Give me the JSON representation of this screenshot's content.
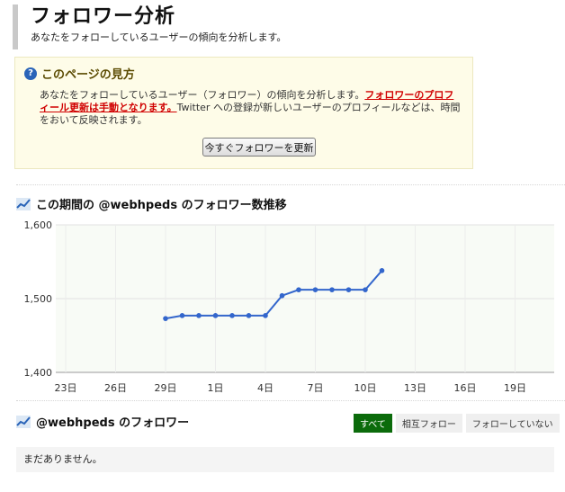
{
  "header": {
    "title": "フォロワー分析",
    "subtitle": "あなたをフォローしているユーザーの傾向を分析します。"
  },
  "help": {
    "title": "このページの見方",
    "text_1": "あなたをフォローしているユーザー（フォロワー）の傾向を分析します。",
    "text_highlight": "フォロワーのプロフィール更新は手動となります。",
    "text_2": "Twitter への登録が新しいユーザーのプロフィールなどは、時間をおいて反映されます。",
    "button_label": "今すぐフォロワーを更新"
  },
  "chart_section": {
    "title": "この期間の @webhpeds のフォロワー数推移"
  },
  "chart_data": {
    "type": "line",
    "x_ticks": [
      "23日",
      "26日",
      "29日",
      "1日",
      "4日",
      "7日",
      "10日",
      "13日",
      "16日",
      "19日"
    ],
    "y_ticks": [
      "1,400",
      "1,500",
      "1,600"
    ],
    "ylim": [
      1400,
      1600
    ],
    "x_index_range": [
      0,
      27
    ],
    "series": [
      {
        "color": "#3366cc",
        "x": [
          6,
          7,
          8,
          9,
          10,
          11,
          12,
          13,
          14,
          15,
          16,
          17,
          18,
          19
        ],
        "y": [
          1473,
          1477,
          1477,
          1477,
          1477,
          1477,
          1477,
          1504,
          1512,
          1512,
          1512,
          1512,
          1512,
          1538
        ]
      }
    ],
    "grid": true
  },
  "followers_section": {
    "title": "@webhpeds のフォロワー",
    "tabs": [
      "すべて",
      "相互フォロー",
      "フォローしていない"
    ],
    "active_tab": "すべて",
    "empty_message": "まだありません。"
  },
  "colors": {
    "accent": "#3366cc",
    "highlight": "#d00000",
    "active_tab": "#0b6b0b"
  }
}
